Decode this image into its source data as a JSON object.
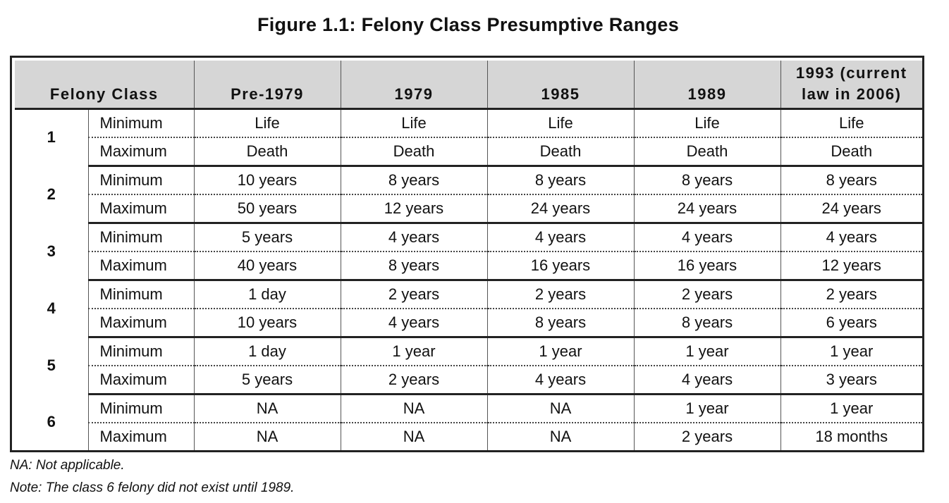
{
  "title": "Figure 1.1:  Felony Class Presumptive Ranges",
  "headers": [
    "Felony Class",
    "Pre-1979",
    "1979",
    "1985",
    "1989",
    "1993 (current law in 2006)"
  ],
  "rows": [
    {
      "cls": "1",
      "min_label": "Minimum",
      "max_label": "Maximum",
      "min": [
        "Life",
        "Life",
        "Life",
        "Life",
        "Life"
      ],
      "max": [
        "Death",
        "Death",
        "Death",
        "Death",
        "Death"
      ]
    },
    {
      "cls": "2",
      "min_label": "Minimum",
      "max_label": "Maximum",
      "min": [
        "10 years",
        "8 years",
        "8 years",
        "8 years",
        "8 years"
      ],
      "max": [
        "50 years",
        "12 years",
        "24 years",
        "24 years",
        "24 years"
      ]
    },
    {
      "cls": "3",
      "min_label": "Minimum",
      "max_label": "Maximum",
      "min": [
        "5 years",
        "4 years",
        "4 years",
        "4 years",
        "4 years"
      ],
      "max": [
        "40 years",
        "8 years",
        "16 years",
        "16 years",
        "12 years"
      ]
    },
    {
      "cls": "4",
      "min_label": "Minimum",
      "max_label": "Maximum",
      "min": [
        "1 day",
        "2 years",
        "2 years",
        "2 years",
        "2 years"
      ],
      "max": [
        "10 years",
        "4 years",
        "8 years",
        "8 years",
        "6 years"
      ]
    },
    {
      "cls": "5",
      "min_label": "Minimum",
      "max_label": "Maximum",
      "min": [
        "1 day",
        "1 year",
        "1 year",
        "1 year",
        "1 year"
      ],
      "max": [
        "5 years",
        "2 years",
        "4 years",
        "4 years",
        "3 years"
      ]
    },
    {
      "cls": "6",
      "min_label": "Minimum",
      "max_label": "Maximum",
      "min": [
        "NA",
        "NA",
        "NA",
        "1 year",
        "1 year"
      ],
      "max": [
        "NA",
        "NA",
        "NA",
        "2 years",
        "18 months"
      ]
    }
  ],
  "notes": {
    "na": "NA:  Not applicable.",
    "class6": "Note:  The class 6 felony did not exist until 1989."
  }
}
